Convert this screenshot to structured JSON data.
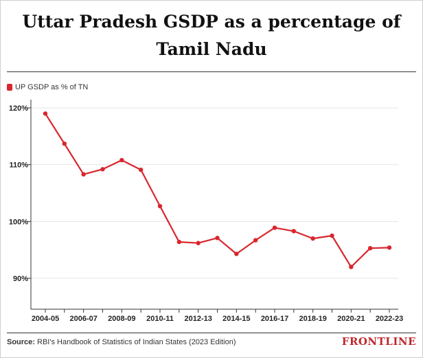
{
  "title": "Uttar Pradesh GSDP as a percentage of Tamil Nadu",
  "legend": {
    "label": "UP GSDP as % of TN",
    "color": "#d9262e"
  },
  "source": {
    "prefix": "Source:",
    "text": "RBI's Handbook of Statistics of Indian States (2023 Edition)"
  },
  "brand": {
    "text": "FRONTLINE",
    "color": "#c0272d"
  },
  "chart_data": {
    "type": "line",
    "title": "Uttar Pradesh GSDP as a percentage of Tamil Nadu",
    "xlabel": "",
    "ylabel": "",
    "x": [
      "2004-05",
      "2005-06",
      "2006-07",
      "2007-08",
      "2008-09",
      "2009-10",
      "2010-11",
      "2011-12",
      "2012-13",
      "2013-14",
      "2014-15",
      "2015-16",
      "2016-17",
      "2017-18",
      "2018-19",
      "2019-20",
      "2020-21",
      "2021-22",
      "2022-23"
    ],
    "x_tick_labels": [
      "2004-05",
      "2006-07",
      "2008-09",
      "2010-11",
      "2012-13",
      "2014-15",
      "2016-17",
      "2018-19",
      "2020-21",
      "2022-23"
    ],
    "series": [
      {
        "name": "UP GSDP as % of TN",
        "color": "#d9262e",
        "values": [
          119.0,
          113.7,
          108.3,
          109.2,
          110.8,
          109.1,
          102.7,
          96.4,
          96.2,
          97.1,
          94.3,
          96.7,
          98.9,
          98.3,
          97.0,
          97.5,
          92.0,
          95.3,
          95.4
        ]
      }
    ],
    "yticks": [
      90,
      100,
      110,
      120
    ],
    "ytick_labels": [
      "90%",
      "100%",
      "110%",
      "120%"
    ],
    "ylim": [
      84,
      120
    ],
    "grid": true,
    "legend_position": "top-left"
  }
}
